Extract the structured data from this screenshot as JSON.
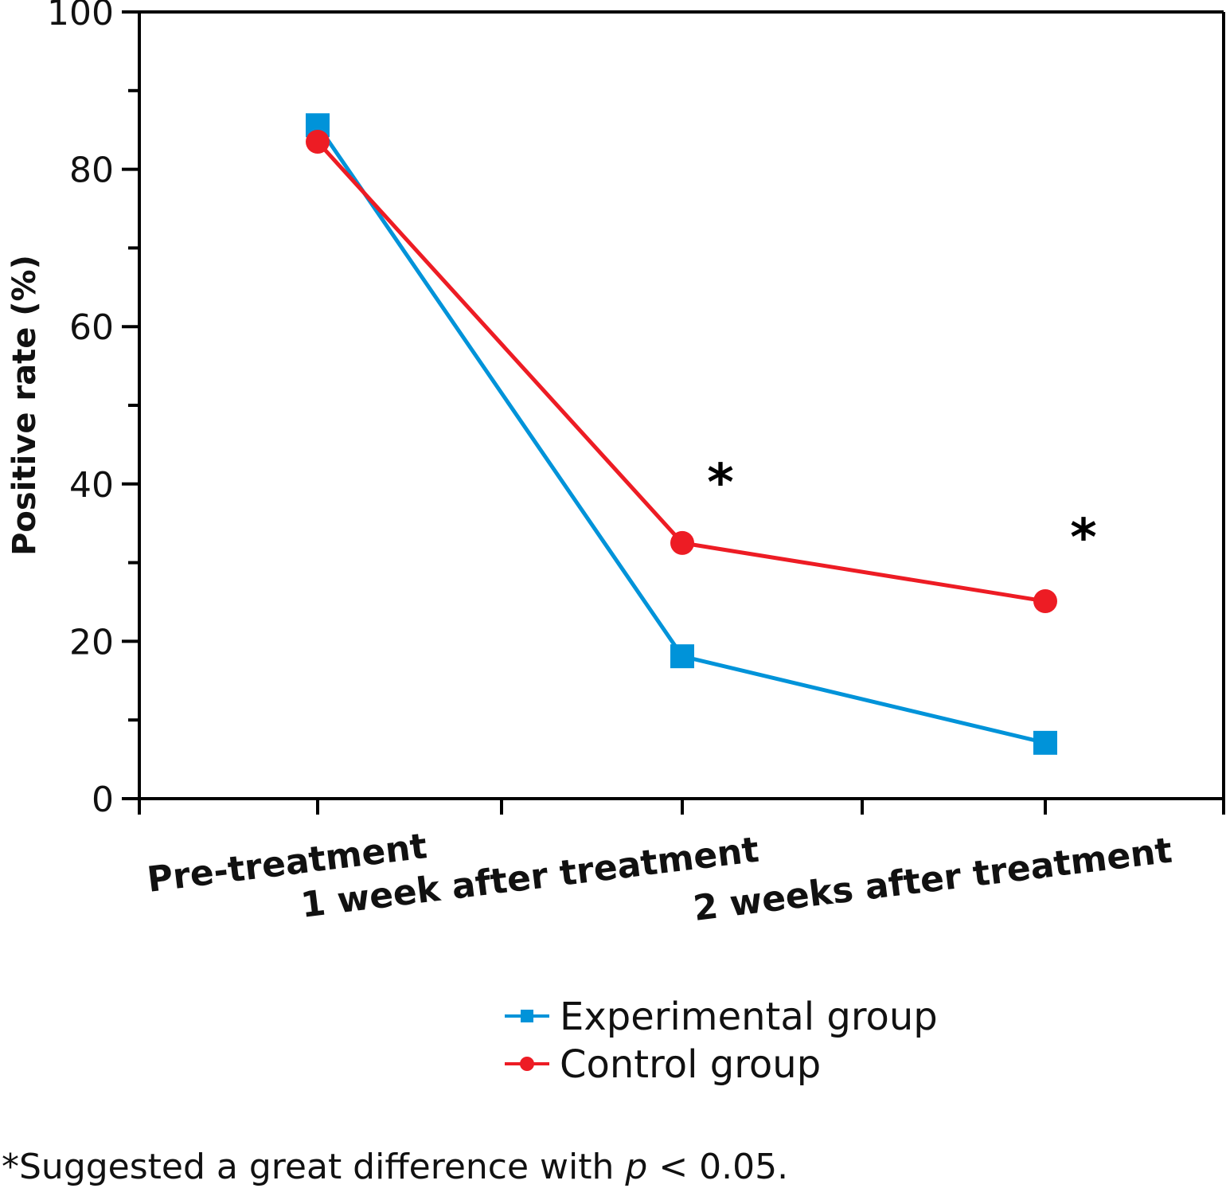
{
  "chart_data": {
    "type": "line",
    "title": "",
    "xlabel": "",
    "ylabel": "Positive rate (%)",
    "ylim": [
      0,
      100
    ],
    "yticks": [
      0,
      20,
      40,
      60,
      80,
      100
    ],
    "yticks_labels": [
      "0",
      "20",
      "40",
      "60",
      "80",
      "100"
    ],
    "categories": [
      "Pre-treatment",
      "1 week after treatment",
      "2 weeks after treatment"
    ],
    "series": [
      {
        "name": "Experimental group",
        "color": "#0093d9",
        "marker": "square",
        "values": [
          85.6,
          18.1,
          7.1
        ]
      },
      {
        "name": "Control group",
        "color": "#ed1c24",
        "marker": "circle",
        "values": [
          83.5,
          32.5,
          25.1
        ]
      }
    ],
    "annotations": [
      {
        "text": "*",
        "category_index": 1,
        "y": 40
      },
      {
        "text": "*",
        "category_index": 2,
        "y": 33
      }
    ],
    "legend_position": "bottom-center",
    "grid": false
  },
  "footnote": {
    "prefix": "*Suggested a great difference with ",
    "italic": "p",
    "suffix": " < 0.05."
  }
}
